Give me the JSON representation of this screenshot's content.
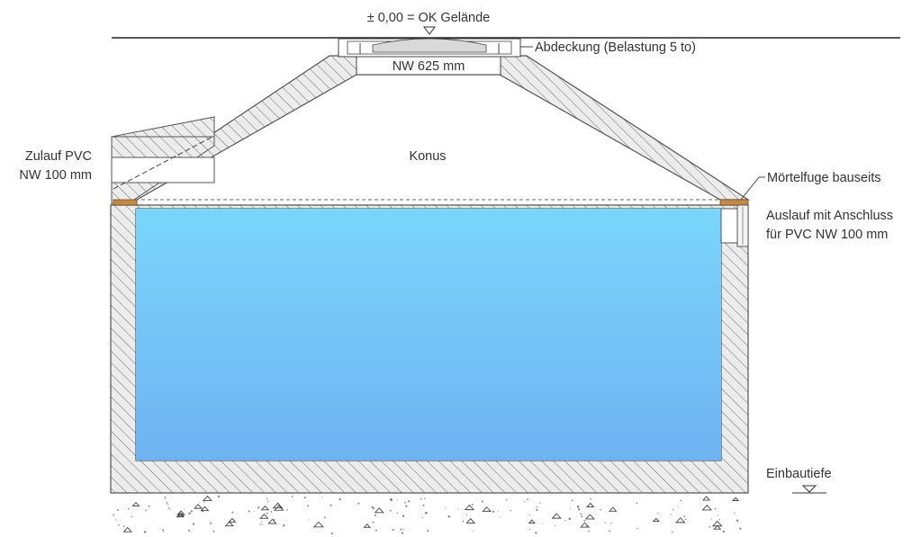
{
  "labels": {
    "ground_level": "± 0,00 = OK Gelände",
    "cover": "Abdeckung (Belastung 5 to)",
    "opening": "NW 625 mm",
    "cone": "Konus",
    "inlet_line1": "Zulauf PVC",
    "inlet_line2": "NW 100 mm",
    "mortar_joint": "Mörtelfuge bauseits",
    "outlet_line1": "Auslauf mit Anschluss",
    "outlet_line2": "für PVC NW 100 mm",
    "install_depth": "Einbautiefe"
  },
  "colors": {
    "water_top": "#7ad6fb",
    "water_bottom": "#6fb2f2",
    "concrete": "#e6e6e6",
    "hatch": "#6b6b6b",
    "outline": "#555555",
    "mortar": "#c58a45"
  }
}
